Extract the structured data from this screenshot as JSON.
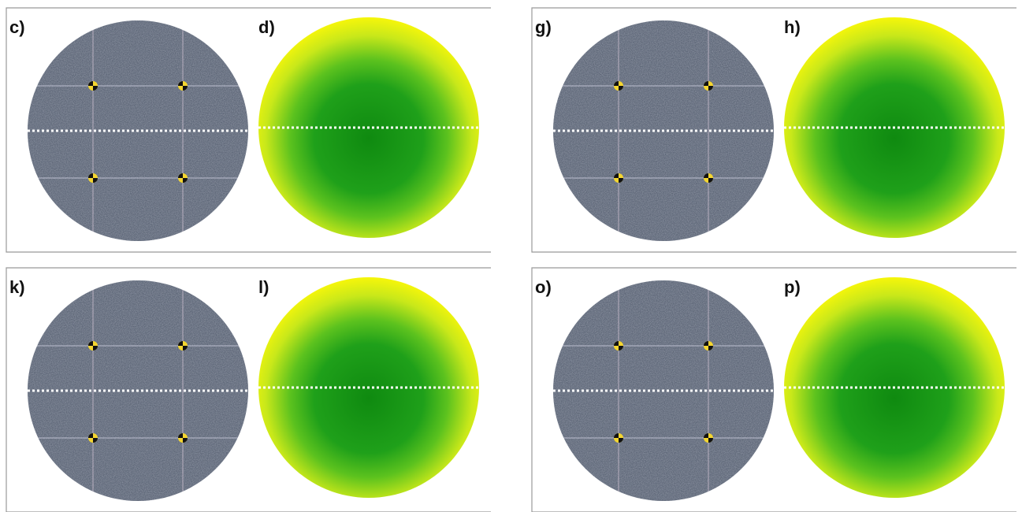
{
  "panels": [
    {
      "photo_label": "c)",
      "map_label": "d)"
    },
    {
      "photo_label": "g)",
      "map_label": "h)"
    },
    {
      "photo_label": "k)",
      "map_label": "l)"
    },
    {
      "photo_label": "o)",
      "map_label": "p)"
    }
  ]
}
